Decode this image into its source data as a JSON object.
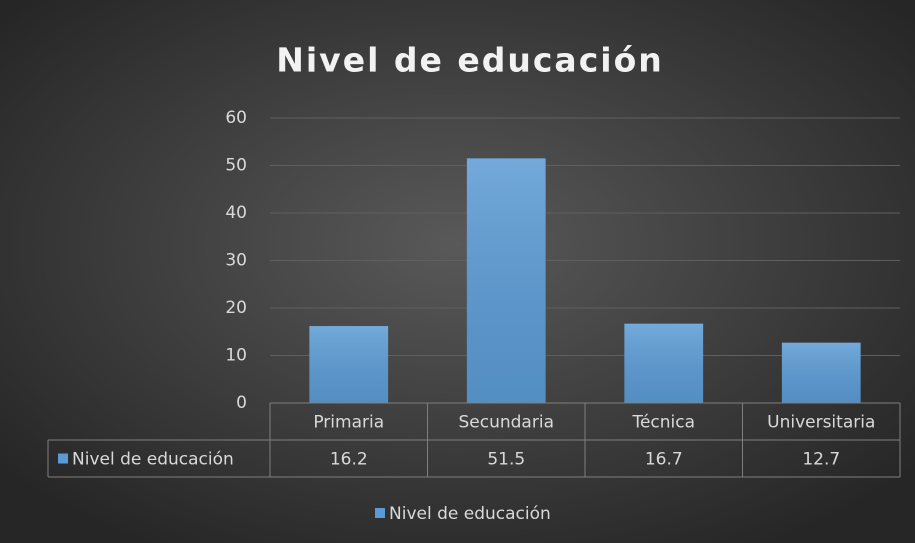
{
  "chart_data": {
    "type": "bar",
    "title": "Nivel de educación",
    "categories": [
      "Primaria",
      "Secundaria",
      "Técnica",
      "Universitaria"
    ],
    "series": [
      {
        "name": "Nivel de educación",
        "color": "#5b9bd5",
        "values": [
          16.2,
          51.5,
          16.7,
          12.7
        ]
      }
    ],
    "ylim": [
      0,
      60
    ],
    "yticks": [
      0,
      10,
      20,
      30,
      40,
      50,
      60
    ],
    "grid": true,
    "data_table": true,
    "legend": "bottom"
  }
}
